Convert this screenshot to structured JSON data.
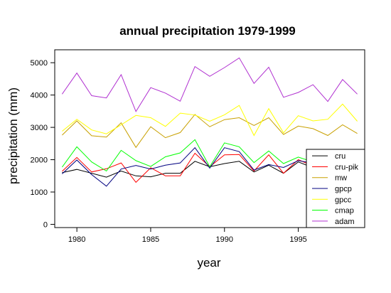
{
  "chart_data": {
    "type": "line",
    "title": "annual precipitation 1979-1999",
    "xlabel": "year",
    "ylabel": "precipitation (mm)",
    "xlim": [
      1978.5,
      1999.5
    ],
    "ylim": [
      -100,
      5400
    ],
    "xticks": [
      1980,
      1985,
      1990,
      1995
    ],
    "xtick_labels": [
      "1980",
      "1985",
      "1990",
      "1995"
    ],
    "yticks": [
      0,
      1000,
      2000,
      3000,
      4000,
      5000
    ],
    "ytick_labels": [
      "0",
      "1000",
      "2000",
      "3000",
      "4000",
      "5000"
    ],
    "grid": false,
    "legend_position": "bottom-right",
    "x": [
      1979,
      1980,
      1981,
      1982,
      1983,
      1984,
      1985,
      1986,
      1987,
      1988,
      1989,
      1990,
      1991,
      1992,
      1993,
      1994,
      1995,
      1996,
      1997,
      1998,
      1999
    ],
    "series": [
      {
        "name": "cru",
        "color": "#000000",
        "values": [
          1600,
          1700,
          1580,
          1460,
          1650,
          1500,
          1470,
          1580,
          1580,
          1950,
          1780,
          1880,
          1950,
          1620,
          1830,
          1580,
          1930,
          1750,
          1780,
          1860,
          1720
        ]
      },
      {
        "name": "cru-pik",
        "color": "#ff0000",
        "values": [
          1640,
          2070,
          1620,
          1720,
          1900,
          1300,
          1750,
          1500,
          1500,
          2200,
          1780,
          2150,
          2160,
          1650,
          2150,
          1580,
          2000,
          1800,
          1870,
          1980,
          1730
        ]
      },
      {
        "name": "mw",
        "color": "#c8a000",
        "values": [
          2760,
          3200,
          2740,
          2700,
          3140,
          2380,
          3020,
          2680,
          2840,
          3400,
          3020,
          3240,
          3300,
          3060,
          3300,
          2780,
          3040,
          2960,
          2750,
          3080,
          2810
        ]
      },
      {
        "name": "gpcp",
        "color": "#000080",
        "values": [
          1560,
          1990,
          1540,
          1180,
          1710,
          1820,
          1710,
          1830,
          1900,
          2370,
          1740,
          2370,
          2250,
          1680,
          1850,
          1760,
          1970,
          1890,
          1800,
          1800,
          1600
        ]
      },
      {
        "name": "gpcc",
        "color": "#ffff00",
        "values": [
          2880,
          3250,
          2920,
          2800,
          3080,
          3370,
          3300,
          3030,
          3440,
          3380,
          3190,
          3390,
          3680,
          2750,
          3580,
          2830,
          3360,
          3200,
          3250,
          3720,
          3190
        ]
      },
      {
        "name": "cmap",
        "color": "#00ff00",
        "values": [
          1770,
          2400,
          1930,
          1650,
          2290,
          1970,
          1790,
          2090,
          2210,
          2620,
          1780,
          2520,
          2400,
          1910,
          2270,
          1880,
          2080,
          1930,
          2120,
          2120,
          1800
        ]
      },
      {
        "name": "adam",
        "color": "#b030d0",
        "values": [
          4030,
          4680,
          3980,
          3910,
          4630,
          3490,
          4230,
          4060,
          3810,
          4880,
          4580,
          4850,
          5150,
          4360,
          4860,
          3930,
          4080,
          4320,
          3800,
          4480,
          4030
        ]
      }
    ]
  }
}
